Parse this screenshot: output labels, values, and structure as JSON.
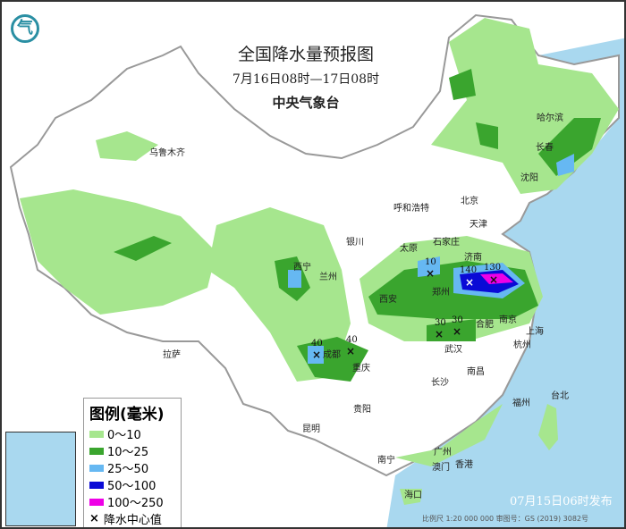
{
  "header": {
    "title": "全国降水量预报图",
    "period": "7月16日08时—17日08时",
    "issuer": "中央气象台"
  },
  "legend": {
    "title": "图例(毫米)",
    "items": [
      {
        "label": "0～10",
        "color": "#a6e68e"
      },
      {
        "label": "10～25",
        "color": "#3aa52e"
      },
      {
        "label": "25～50",
        "color": "#66b8f2"
      },
      {
        "label": "50～100",
        "color": "#0a0ad6"
      },
      {
        "label": "100～250",
        "color": "#ee00e6"
      }
    ],
    "center_label": "降水中心值",
    "center_icon": "x-mark-icon"
  },
  "cities": [
    {
      "name": "乌鲁木齐"
    },
    {
      "name": "哈尔滨"
    },
    {
      "name": "长春"
    },
    {
      "name": "沈阳"
    },
    {
      "name": "北京"
    },
    {
      "name": "天津"
    },
    {
      "name": "呼和浩特"
    },
    {
      "name": "石家庄"
    },
    {
      "name": "太原"
    },
    {
      "name": "银川"
    },
    {
      "name": "西宁"
    },
    {
      "name": "兰州"
    },
    {
      "name": "济南"
    },
    {
      "name": "郑州"
    },
    {
      "name": "西安"
    },
    {
      "name": "合肥"
    },
    {
      "name": "南京"
    },
    {
      "name": "上海"
    },
    {
      "name": "武汉"
    },
    {
      "name": "杭州"
    },
    {
      "name": "成都"
    },
    {
      "name": "重庆"
    },
    {
      "name": "拉萨"
    },
    {
      "name": "长沙"
    },
    {
      "name": "南昌"
    },
    {
      "name": "贵阳"
    },
    {
      "name": "福州"
    },
    {
      "name": "台北"
    },
    {
      "name": "昆明"
    },
    {
      "name": "南宁"
    },
    {
      "name": "广州"
    },
    {
      "name": "澳门"
    },
    {
      "name": "香港"
    },
    {
      "name": "海口"
    }
  ],
  "rain_centers": [
    {
      "value": "10"
    },
    {
      "value": "140"
    },
    {
      "value": "130"
    },
    {
      "value": "30"
    },
    {
      "value": "30"
    },
    {
      "value": "40"
    },
    {
      "value": "40"
    }
  ],
  "footer": {
    "issued": "07月15日06时发布",
    "scale": "比例尺 1:20 000 000    审图号：GS (2019) 3082号"
  },
  "sea": {
    "color": "#a9d8ef"
  }
}
